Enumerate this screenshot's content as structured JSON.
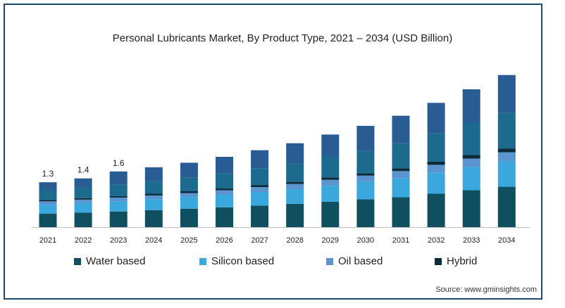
{
  "page": {
    "source": "Source: www.gminsights.com"
  },
  "chart_data": {
    "type": "bar",
    "stacked": true,
    "title": "Personal Lubricants Market, By Product Type, 2021 – 2034 (USD Billion)",
    "xlabel": "",
    "ylabel": "",
    "categories": [
      "2021",
      "2022",
      "2023",
      "2024",
      "2025",
      "2026",
      "2027",
      "2028",
      "2029",
      "2030",
      "2031",
      "2032",
      "2033",
      "2034"
    ],
    "series": [
      {
        "name": "Water based",
        "color": "#0f4f60",
        "values": [
          0.39,
          0.42,
          0.45,
          0.49,
          0.53,
          0.57,
          0.62,
          0.67,
          0.73,
          0.8,
          0.86,
          0.96,
          1.06,
          1.16
        ]
      },
      {
        "name": "Silicon based",
        "color": "#3aa8dc",
        "values": [
          0.25,
          0.27,
          0.29,
          0.31,
          0.33,
          0.36,
          0.39,
          0.42,
          0.46,
          0.5,
          0.55,
          0.61,
          0.67,
          0.73
        ]
      },
      {
        "name": "Oil based",
        "color": "#5b95d0",
        "values": [
          0.1,
          0.1,
          0.11,
          0.11,
          0.12,
          0.13,
          0.14,
          0.15,
          0.17,
          0.18,
          0.2,
          0.22,
          0.24,
          0.26
        ]
      },
      {
        "name": "Hybrid",
        "color": "#0c2a3a",
        "values": [
          0.04,
          0.04,
          0.04,
          0.05,
          0.05,
          0.05,
          0.06,
          0.06,
          0.07,
          0.07,
          0.08,
          0.09,
          0.1,
          0.11
        ]
      },
      {
        "name": "",
        "color": "#1c6b8f",
        "values": [
          0.27,
          0.3,
          0.33,
          0.36,
          0.39,
          0.43,
          0.48,
          0.53,
          0.59,
          0.65,
          0.72,
          0.81,
          0.92,
          1.03
        ]
      },
      {
        "name": "",
        "color": "#2a5c94",
        "values": [
          0.24,
          0.27,
          0.38,
          0.4,
          0.43,
          0.48,
          0.52,
          0.58,
          0.64,
          0.71,
          0.79,
          0.88,
          0.97,
          1.08
        ]
      }
    ],
    "data_labels": [
      {
        "category": "2021",
        "text": "1.3"
      },
      {
        "category": "2022",
        "text": "1.4"
      },
      {
        "category": "2023",
        "text": "1.6"
      }
    ],
    "legend_position": "bottom",
    "grid": false
  }
}
